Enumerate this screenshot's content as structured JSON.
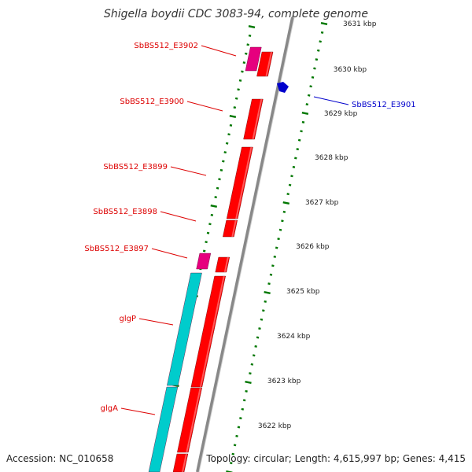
{
  "title": "Shigella boydii CDC 3083-94, complete genome",
  "footer": {
    "accession": "Accession: NC_010658",
    "summary": "Topology: circular; Length: 4,615,997 bp; Genes: 4,415"
  },
  "colors": {
    "forward_cds": "#ff0000",
    "reverse_cds": "#0000cc",
    "rna": "#e6007e",
    "operon": "#00cccc",
    "backbone": "#888888",
    "ticks": "#007700"
  },
  "scale_labels": [
    "3631 kbp",
    "3630 kbp",
    "3629 kbp",
    "3628 kbp",
    "3627 kbp",
    "3626 kbp",
    "3625 kbp",
    "3624 kbp",
    "3623 kbp",
    "3622 kbp"
  ],
  "gene_labels": [
    {
      "name": "SbBS512_E3902",
      "strand": "forward"
    },
    {
      "name": "SbBS512_E3900",
      "strand": "forward"
    },
    {
      "name": "SbBS512_E3899",
      "strand": "forward"
    },
    {
      "name": "SbBS512_E3898",
      "strand": "forward"
    },
    {
      "name": "SbBS512_E3897",
      "strand": "forward"
    },
    {
      "name": "glgP",
      "strand": "forward"
    },
    {
      "name": "glgA",
      "strand": "forward"
    },
    {
      "name": "SbBS512_E3901",
      "strand": "reverse"
    }
  ]
}
